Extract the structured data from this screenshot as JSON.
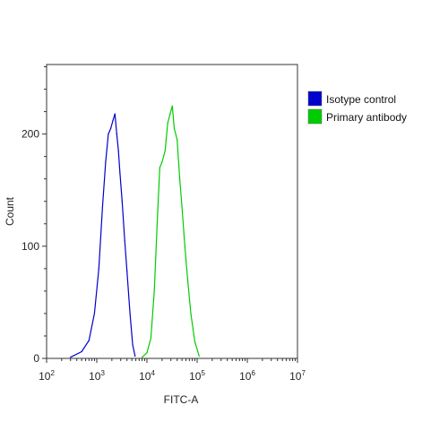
{
  "chart_data": {
    "type": "line",
    "title": "",
    "xlabel": "FITC-A",
    "ylabel": "Count",
    "xscale": "log",
    "xlim": [
      100,
      10000000
    ],
    "ylim": [
      0,
      262
    ],
    "x_ticks": [
      {
        "value": 100,
        "base": "10",
        "exp": "2"
      },
      {
        "value": 1000,
        "base": "10",
        "exp": "3"
      },
      {
        "value": 10000,
        "base": "10",
        "exp": "4"
      },
      {
        "value": 100000,
        "base": "10",
        "exp": "5"
      },
      {
        "value": 1000000,
        "base": "10",
        "exp": "6"
      },
      {
        "value": 10000000,
        "base": "10",
        "exp": "7"
      }
    ],
    "y_ticks": [
      0,
      100,
      200
    ],
    "grid": false,
    "legend_position": "right",
    "series": [
      {
        "name": "Isotype control",
        "color": "#0000cc",
        "x": [
          300,
          500,
          700,
          900,
          1100,
          1300,
          1500,
          1700,
          1900,
          2100,
          2300,
          2500,
          2700,
          2900,
          3200,
          3600,
          4000,
          4600,
          5200,
          5800
        ],
        "y": [
          1,
          6,
          16,
          40,
          80,
          135,
          175,
          200,
          205,
          212,
          218,
          200,
          185,
          165,
          140,
          105,
          78,
          40,
          12,
          2
        ]
      },
      {
        "name": "Primary antibody",
        "color": "#00cc00",
        "x": [
          8000,
          10000,
          12000,
          14000,
          16000,
          18000,
          20000,
          23000,
          26000,
          29000,
          32000,
          35000,
          40000,
          45000,
          50000,
          57000,
          65000,
          75000,
          90000,
          110000
        ],
        "y": [
          1,
          5,
          18,
          60,
          120,
          170,
          175,
          185,
          210,
          218,
          225,
          205,
          195,
          160,
          135,
          100,
          70,
          40,
          15,
          2
        ]
      }
    ]
  }
}
